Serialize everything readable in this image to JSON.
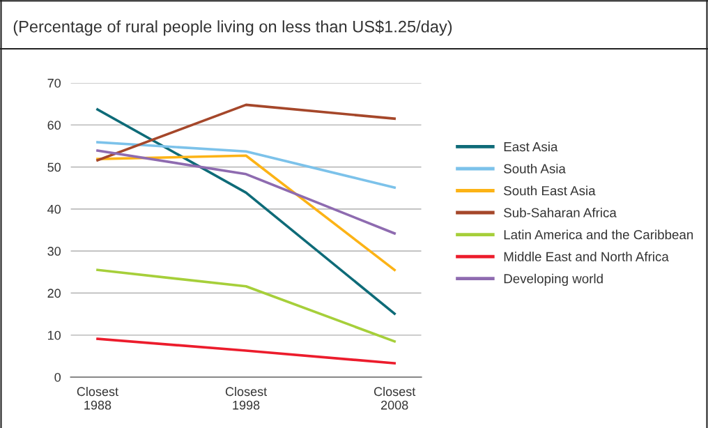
{
  "chart_data": {
    "type": "line",
    "title": "(Percentage of rural people living on less than US$1.25/day)",
    "categories": [
      "Closest\n1988",
      "Closest\n1998",
      "Closest\n2008"
    ],
    "series": [
      {
        "name": "East Asia",
        "color": "#0e6b78",
        "values": [
          63.7,
          43.9,
          15.1
        ]
      },
      {
        "name": "South Asia",
        "color": "#7cc2ea",
        "values": [
          55.9,
          53.7,
          45.1
        ]
      },
      {
        "name": "South East Asia",
        "color": "#fcb316",
        "values": [
          51.9,
          52.7,
          25.5
        ]
      },
      {
        "name": "Sub-Saharan Africa",
        "color": "#a5472a",
        "values": [
          51.6,
          64.8,
          61.5
        ]
      },
      {
        "name": "Latin America and the Caribbean",
        "color": "#a6cf3a",
        "values": [
          25.5,
          21.6,
          8.5
        ]
      },
      {
        "name": "Middle East and North Africa",
        "color": "#ec1c2c",
        "values": [
          9.1,
          6.3,
          3.3
        ]
      },
      {
        "name": "Developing world",
        "color": "#8e6bb0",
        "values": [
          53.9,
          48.3,
          34.2
        ]
      }
    ],
    "ylim": [
      0,
      70
    ],
    "yticks": [
      0,
      10,
      20,
      30,
      40,
      50,
      60,
      70
    ],
    "grid": "y",
    "legend": "right",
    "marker": "none",
    "line_style": "solid"
  }
}
